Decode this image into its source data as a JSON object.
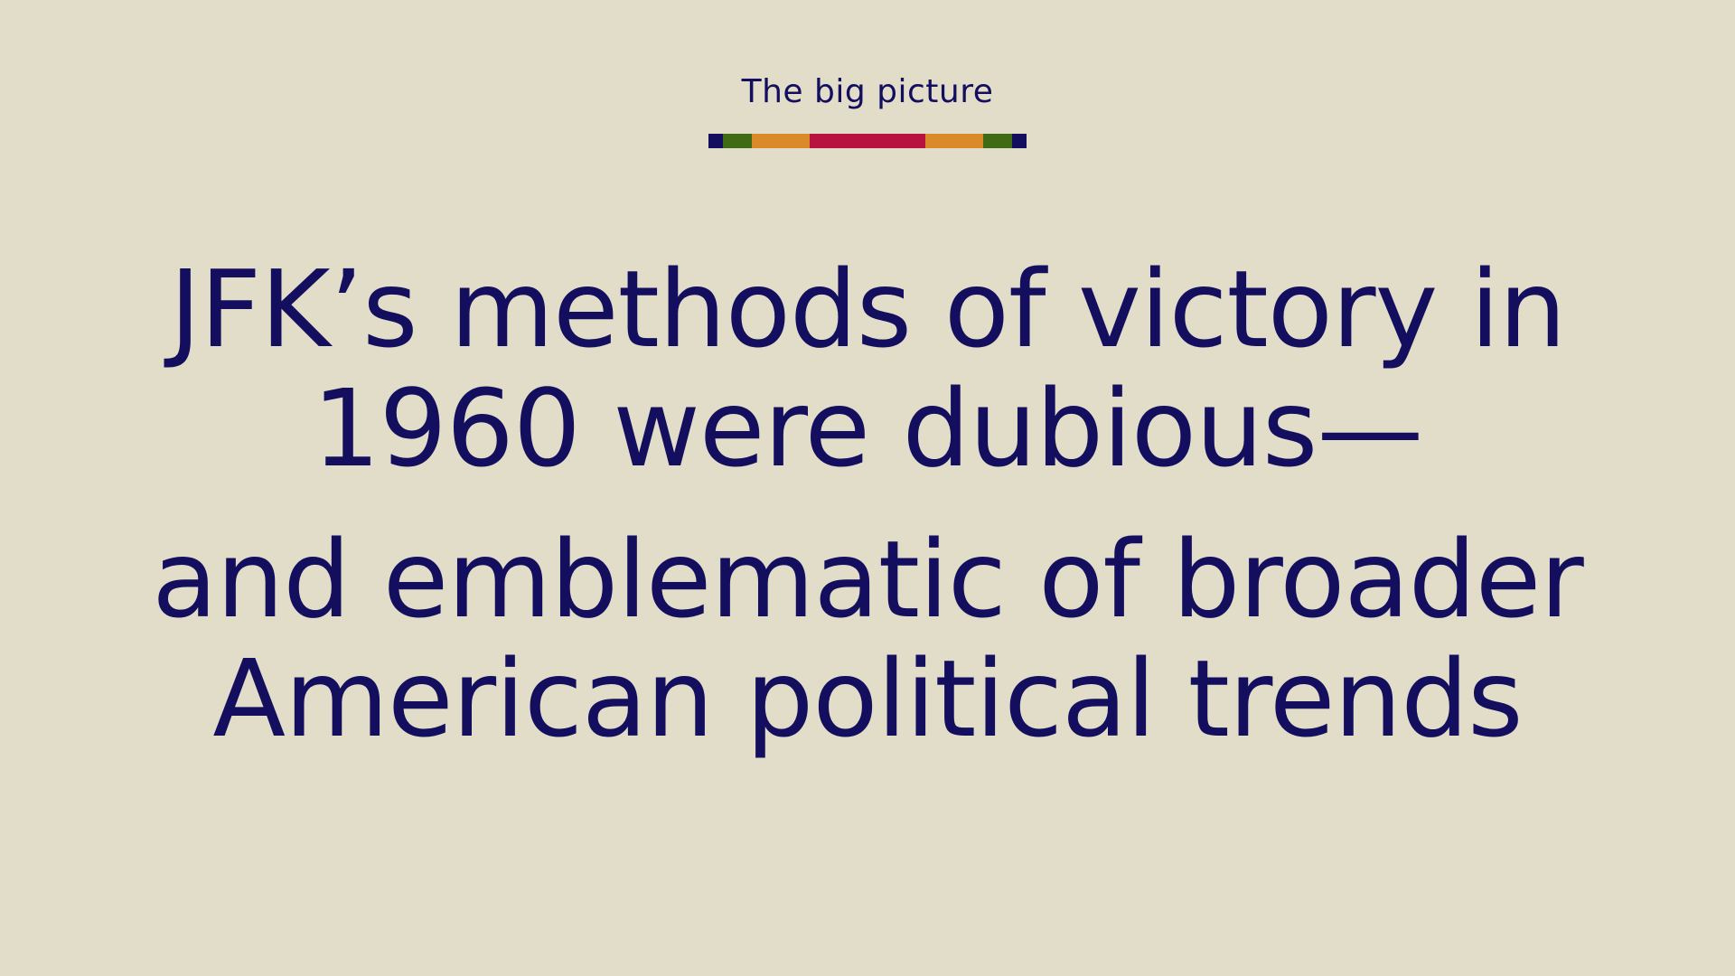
{
  "kicker": "The big picture",
  "color_bar": [
    {
      "color": "#130f5e",
      "weight": 1
    },
    {
      "color": "#3f6b15",
      "weight": 2
    },
    {
      "color": "#db8a2a",
      "weight": 4
    },
    {
      "color": "#b8123f",
      "weight": 8
    },
    {
      "color": "#db8a2a",
      "weight": 4
    },
    {
      "color": "#3f6b15",
      "weight": 2
    },
    {
      "color": "#130f5e",
      "weight": 1
    }
  ],
  "headline": {
    "line1": "JFK’s methods of victory in",
    "line2": "1960 were dubious—",
    "line3": "and emblematic of broader",
    "line4": "American political trends"
  },
  "colors": {
    "background": "#e2ddc8",
    "text": "#130f5e"
  }
}
